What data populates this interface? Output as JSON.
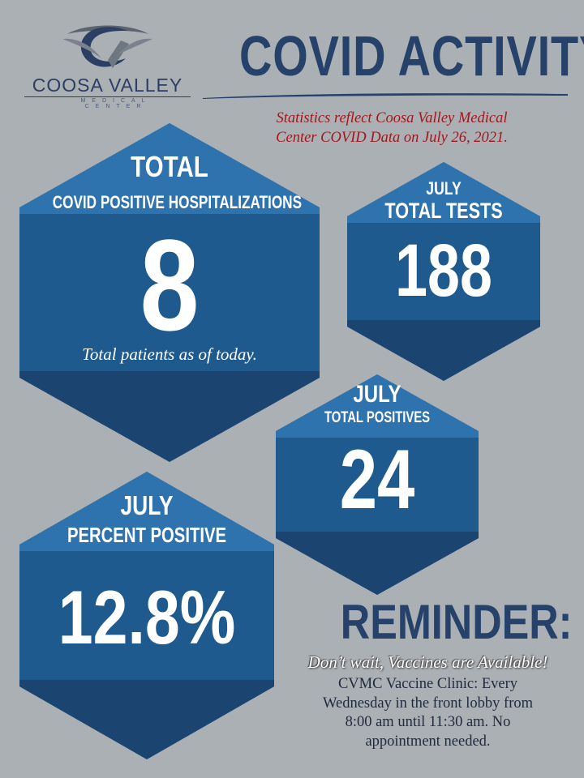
{
  "header": {
    "logo_wordmark": "COOSA VALLEY",
    "logo_tagline": "MEDICAL CENTER",
    "title": "COVID ACTIVITY",
    "subtitle_line1": "Statistics reflect Coosa Valley Medical",
    "subtitle_line2": "Center COVID Data on July 26, 2021."
  },
  "stats": {
    "hospitalizations": {
      "label_top": "TOTAL",
      "label_bottom": "COVID POSITIVE HOSPITALIZATIONS",
      "value": "8",
      "note": "Total patients as of today."
    },
    "tests": {
      "label_top": "JULY",
      "label_bottom": "TOTAL TESTS",
      "value": "188"
    },
    "positives": {
      "label_top": "JULY",
      "label_bottom": "TOTAL POSITIVES",
      "value": "24"
    },
    "percent": {
      "label_top": "JULY",
      "label_bottom": "PERCENT POSITIVE",
      "value": "12.8%"
    }
  },
  "reminder": {
    "title": "REMINDER:",
    "subtitle": "Don’t wait, Vaccines are Available!",
    "line1": "CVMC Vaccine Clinic: Every",
    "line2": "Wednesday in the front lobby from",
    "line3": "8:00 am until 11:30 am. No",
    "line4": "appointment needed."
  },
  "colors": {
    "background": "#abb0b5",
    "hex_light": "#2f73ae",
    "hex_mid": "#1f5a8e",
    "hex_dark": "#1b4470",
    "title_navy": "#27426a",
    "subtitle_red": "#a4161c"
  }
}
